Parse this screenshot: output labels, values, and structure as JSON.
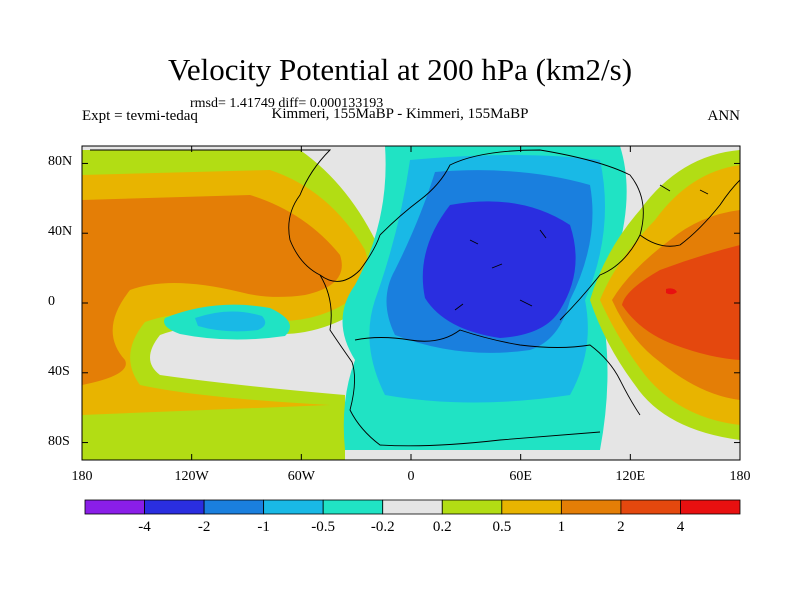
{
  "title": "Velocity Potential at 200 hPa (km2/s)",
  "stats": "rmsd= 1.41749 diff= 0.000133193",
  "experiment": "Expt = tevmi-tedaq",
  "case_label": "Kimmeri, 155MaBP - Kimmeri, 155MaBP",
  "season": "ANN",
  "map": {
    "lon_range": [
      -180,
      180
    ],
    "lat_range": [
      -90,
      90
    ],
    "x_ticks": [
      {
        "lon": -180,
        "label": "180"
      },
      {
        "lon": -120,
        "label": "120W"
      },
      {
        "lon": -60,
        "label": "60W"
      },
      {
        "lon": 0,
        "label": "0"
      },
      {
        "lon": 60,
        "label": "60E"
      },
      {
        "lon": 120,
        "label": "120E"
      },
      {
        "lon": 180,
        "label": "180"
      }
    ],
    "y_ticks": [
      {
        "lat": 80,
        "label": "80N"
      },
      {
        "lat": 40,
        "label": "40N"
      },
      {
        "lat": 0,
        "label": "0"
      },
      {
        "lat": -40,
        "label": "40S"
      },
      {
        "lat": -80,
        "label": "80S"
      }
    ]
  },
  "colorbar": {
    "colors": [
      "#8a1ee8",
      "#2a2ee0",
      "#1a7fde",
      "#19b9e6",
      "#20e3c4",
      "#e5e5e5",
      "#b2dd14",
      "#e8b400",
      "#e47e06",
      "#e4480e",
      "#e81010"
    ],
    "labels": [
      "-4",
      "-2",
      "-1",
      "-0.5",
      "-0.2",
      "0.2",
      "0.5",
      "1",
      "2",
      "4"
    ]
  },
  "colors": {
    "background": "#e5e5e5",
    "land_outline": "#000000"
  }
}
